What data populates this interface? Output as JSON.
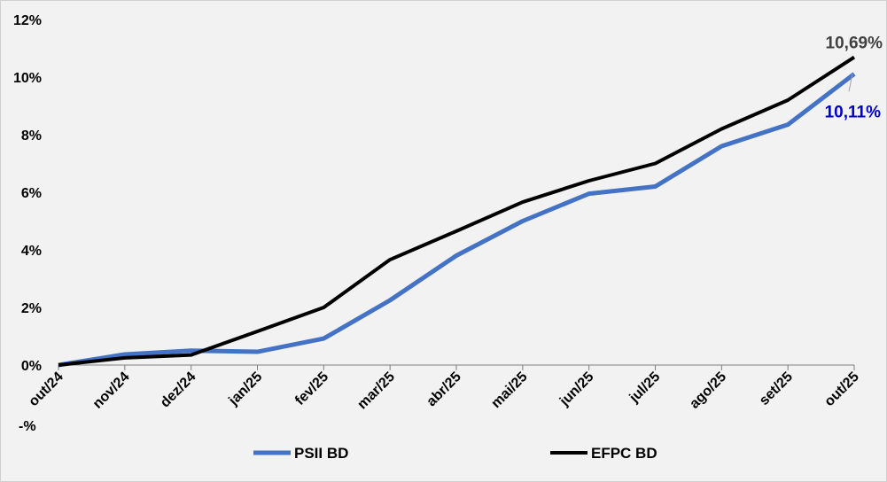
{
  "chart_data": {
    "type": "line",
    "title": "",
    "xlabel": "",
    "ylabel": "",
    "ylim": [
      0,
      12
    ],
    "y_ticks": [
      "0%",
      "2%",
      "4%",
      "6%",
      "8%",
      "10%",
      "12%"
    ],
    "y_tick_values": [
      0,
      2,
      4,
      6,
      8,
      10,
      12
    ],
    "categories": [
      "out/24",
      "nov/24",
      "dez/24",
      "jan/25",
      "fev/25",
      "mar/25",
      "abr/25",
      "mai/25",
      "jun/25",
      "jul/25",
      "ago/25",
      "set/25",
      "out/25"
    ],
    "start_label": "-%",
    "series": [
      {
        "name": "PSII BD",
        "color": "#4472c4",
        "values": [
          0,
          0.37,
          0.5,
          0.46,
          0.92,
          2.25,
          3.8,
          5.0,
          5.95,
          6.2,
          7.6,
          8.35,
          10.11
        ],
        "end_label": "10,11%",
        "label_color": "#0000cc"
      },
      {
        "name": "EFPC BD",
        "color": "#000000",
        "values": [
          0,
          0.25,
          0.35,
          1.17,
          2.0,
          3.66,
          4.65,
          5.66,
          6.4,
          7.0,
          8.2,
          9.2,
          10.69
        ],
        "end_label": "10,69%",
        "label_color": "#404040"
      }
    ],
    "grid": false,
    "legend_position": "bottom"
  }
}
